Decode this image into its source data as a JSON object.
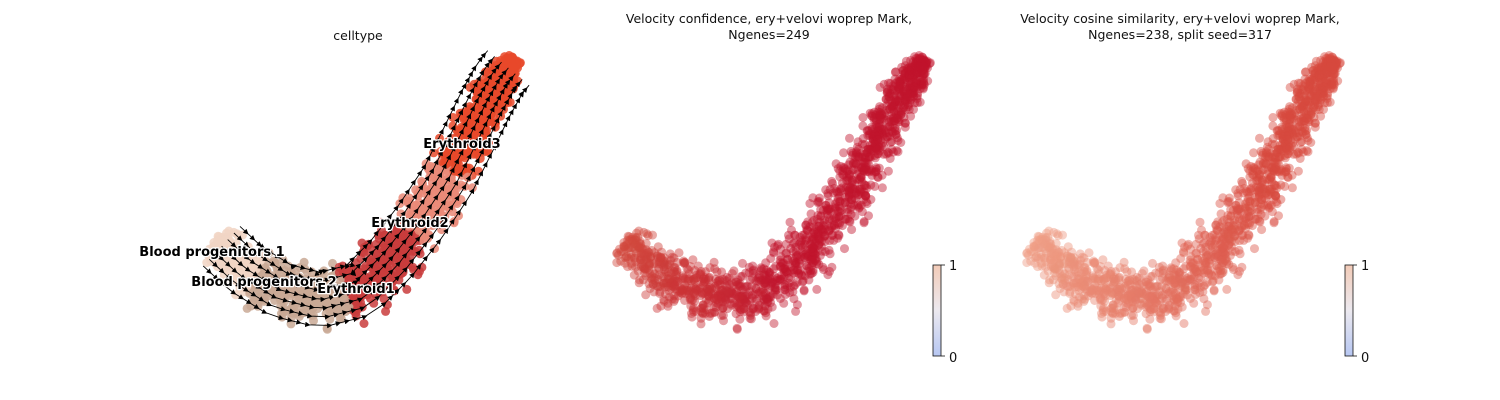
{
  "chart_data": [
    {
      "type": "scatter",
      "subtype": "velocity-stream-embedding",
      "title": "celltype",
      "color_by": "celltype",
      "categories": [
        {
          "name": "Blood progenitors 1",
          "color": "#f1d5c4"
        },
        {
          "name": "Blood progenitors 2",
          "color": "#c9a995"
        },
        {
          "name": "Erythroid1",
          "color": "#c93c3c"
        },
        {
          "name": "Erythroid2",
          "color": "#ea8a78"
        },
        {
          "name": "Erythroid3",
          "color": "#e8492a"
        }
      ],
      "annotations": [
        "Blood progenitors 1",
        "Blood progenitors 2",
        "Erythroid1",
        "Erythroid2",
        "Erythroid3"
      ],
      "grid": false,
      "legend": "on data"
    },
    {
      "type": "scatter",
      "title_line1": "Velocity confidence, ery+velovi woprep Mark,",
      "title_line2": "Ngenes=249",
      "colorbar": {
        "min": 0,
        "max": 1,
        "tick_min": "0",
        "tick_max": "1",
        "cmap": "coolwarm-upper"
      },
      "value_range": [
        0.75,
        1.0
      ],
      "grid": false
    },
    {
      "type": "scatter",
      "title_line1": "Velocity cosine similarity, ery+velovi woprep Mark,",
      "title_line2": "Ngenes=238, split seed=317",
      "colorbar": {
        "min": 0,
        "max": 1,
        "tick_min": "0",
        "tick_max": "1",
        "cmap": "coolwarm-upper"
      },
      "value_range": [
        0.7,
        0.95
      ],
      "grid": false
    }
  ]
}
